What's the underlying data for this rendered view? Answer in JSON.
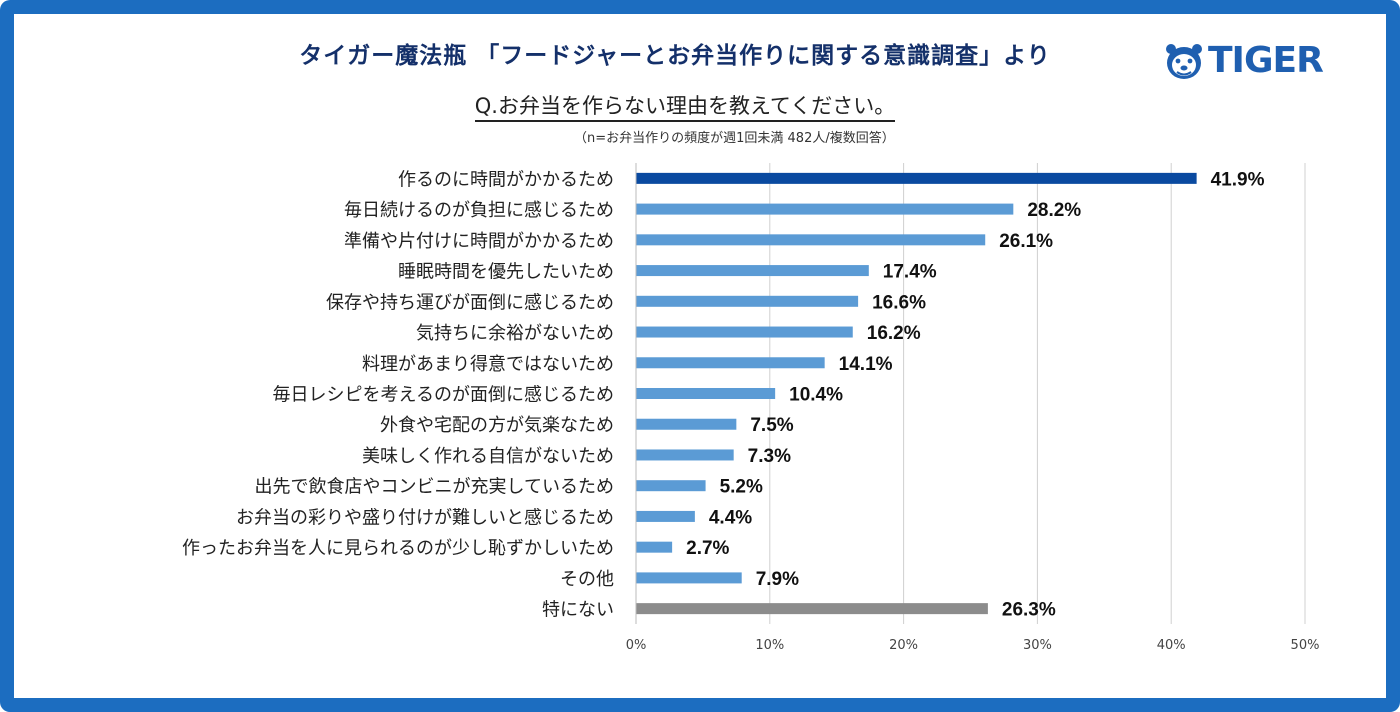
{
  "header": {
    "title": "タイガー魔法瓶 「フードジャーとお弁当作りに関する意識調査」より",
    "question": "Q.お弁当を作らない理由を教えてください。",
    "note": "（n=お弁当作りの頻度が週1回未満 482人/複数回答）",
    "logo_text": "TIGER"
  },
  "colors": {
    "frame": "#1c6dc0",
    "highlight": "#0a4aa0",
    "bar": "#5b9bd5",
    "other_bar": "#8c8c8c",
    "title": "#14306a"
  },
  "chart_data": {
    "type": "bar",
    "orientation": "horizontal",
    "categories": [
      "作るのに時間がかかるため",
      "毎日続けるのが負担に感じるため",
      "準備や片付けに時間がかかるため",
      "睡眠時間を優先したいため",
      "保存や持ち運びが面倒に感じるため",
      "気持ちに余裕がないため",
      "料理があまり得意ではないため",
      "毎日レシピを考えるのが面倒に感じるため",
      "外食や宅配の方が気楽なため",
      "美味しく作れる自信がないため",
      "出先で飲食店やコンビニが充実しているため",
      "お弁当の彩りや盛り付けが難しいと感じるため",
      "作ったお弁当を人に見られるのが少し恥ずかしいため",
      "その他",
      "特にない"
    ],
    "values": [
      41.9,
      28.2,
      26.1,
      17.4,
      16.6,
      16.2,
      14.1,
      10.4,
      7.5,
      7.3,
      5.2,
      4.4,
      2.7,
      7.9,
      26.3
    ],
    "value_labels": [
      "41.9%",
      "28.2%",
      "26.1%",
      "17.4%",
      "16.6%",
      "16.2%",
      "14.1%",
      "10.4%",
      "7.5%",
      "7.3%",
      "5.2%",
      "4.4%",
      "2.7%",
      "7.9%",
      "26.3%"
    ],
    "x_ticks": [
      "0%",
      "10%",
      "20%",
      "30%",
      "40%",
      "50%"
    ],
    "xlim": [
      0,
      50
    ],
    "grid": "vertical"
  }
}
